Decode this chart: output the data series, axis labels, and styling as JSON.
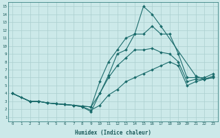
{
  "xlabel": "Humidex (Indice chaleur)",
  "background_color": "#cce9e9",
  "grid_color": "#aacfcf",
  "line_color": "#1a6b6b",
  "xlim": [
    -0.5,
    23.5
  ],
  "ylim": [
    0.5,
    15.5
  ],
  "xticks": [
    0,
    1,
    2,
    3,
    4,
    5,
    6,
    7,
    8,
    9,
    10,
    11,
    12,
    13,
    14,
    15,
    16,
    17,
    18,
    19,
    20,
    21,
    22,
    23
  ],
  "yticks": [
    1,
    2,
    3,
    4,
    5,
    6,
    7,
    8,
    9,
    10,
    11,
    12,
    13,
    14,
    15
  ],
  "series": [
    {
      "x": [
        0,
        1,
        2,
        3,
        4,
        5,
        6,
        7,
        8,
        9,
        10,
        11,
        12,
        13,
        14,
        15,
        16,
        17,
        21,
        22,
        23
      ],
      "y": [
        4,
        3.5,
        3,
        3,
        2.8,
        2.7,
        2.6,
        2.5,
        2.3,
        1.7,
        4,
        6.3,
        9.0,
        9.5,
        11.5,
        15,
        14,
        12.5,
        6.2,
        5.8,
        6.0
      ]
    },
    {
      "x": [
        0,
        2,
        3,
        4,
        5,
        6,
        7,
        8,
        9,
        10,
        11,
        12,
        13,
        14,
        15,
        16,
        17,
        18,
        19,
        20,
        21,
        22,
        23
      ],
      "y": [
        4,
        3,
        3,
        2.8,
        2.7,
        2.6,
        2.5,
        2.4,
        2.3,
        5.5,
        8.0,
        9.5,
        11.0,
        11.5,
        11.5,
        12.5,
        11.5,
        11.5,
        9.0,
        6.0,
        6.0,
        6.0,
        6.5
      ]
    },
    {
      "x": [
        0,
        2,
        3,
        4,
        5,
        6,
        7,
        8,
        9,
        10,
        11,
        12,
        13,
        14,
        15,
        16,
        17,
        18,
        19,
        20,
        21,
        22,
        23
      ],
      "y": [
        4,
        3,
        3,
        2.8,
        2.7,
        2.6,
        2.5,
        2.4,
        2.3,
        4.0,
        6.0,
        7.5,
        8.5,
        9.5,
        9.5,
        9.7,
        9.2,
        9.0,
        8.0,
        5.5,
        5.8,
        5.8,
        6.0
      ]
    },
    {
      "x": [
        0,
        2,
        3,
        4,
        5,
        6,
        7,
        8,
        9,
        10,
        11,
        12,
        13,
        14,
        15,
        16,
        17,
        18,
        19,
        20,
        21,
        22,
        23
      ],
      "y": [
        4,
        3,
        3,
        2.8,
        2.7,
        2.6,
        2.5,
        2.3,
        1.9,
        2.5,
        3.8,
        4.5,
        5.5,
        6.0,
        6.5,
        7.0,
        7.5,
        8.0,
        7.5,
        5.0,
        5.5,
        5.8,
        6.2
      ]
    }
  ]
}
